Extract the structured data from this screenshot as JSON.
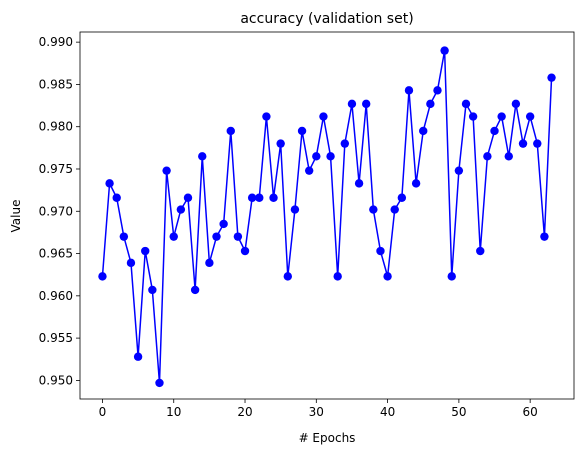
{
  "chart_data": {
    "type": "line",
    "title": "accuracy (validation set)",
    "xlabel": "# Epochs",
    "ylabel": "Value",
    "xlim": [
      -3.15,
      66.15
    ],
    "ylim": [
      0.9478,
      0.9912
    ],
    "xticks": [
      0,
      10,
      20,
      30,
      40,
      50,
      60
    ],
    "yticks": [
      0.95,
      0.955,
      0.96,
      0.965,
      0.97,
      0.975,
      0.98,
      0.985,
      0.99
    ],
    "xtick_labels": [
      "0",
      "10",
      "20",
      "30",
      "40",
      "50",
      "60"
    ],
    "ytick_labels": [
      "0.950",
      "0.955",
      "0.960",
      "0.965",
      "0.970",
      "0.975",
      "0.980",
      "0.985",
      "0.990"
    ],
    "grid": false,
    "legend": "none",
    "series": [
      {
        "color": "#0000ff",
        "marker": "circle",
        "x": [
          0,
          1,
          2,
          3,
          4,
          5,
          6,
          7,
          8,
          9,
          10,
          11,
          12,
          13,
          14,
          15,
          16,
          17,
          18,
          19,
          20,
          21,
          22,
          23,
          24,
          25,
          26,
          27,
          28,
          29,
          30,
          31,
          32,
          33,
          34,
          35,
          36,
          37,
          38,
          39,
          40,
          41,
          42,
          43,
          44,
          45,
          46,
          47,
          48,
          49,
          50,
          51,
          52,
          53,
          54,
          55,
          56,
          57,
          58,
          59,
          60,
          61,
          62,
          63
        ],
        "values": [
          0.9623,
          0.9733,
          0.9716,
          0.967,
          0.9639,
          0.9528,
          0.9653,
          0.9607,
          0.9497,
          0.9748,
          0.967,
          0.9702,
          0.9716,
          0.9607,
          0.9765,
          0.9639,
          0.967,
          0.9685,
          0.9795,
          0.967,
          0.9653,
          0.9716,
          0.9716,
          0.9812,
          0.9716,
          0.978,
          0.9623,
          0.9702,
          0.9795,
          0.9748,
          0.9765,
          0.9812,
          0.9765,
          0.9623,
          0.978,
          0.9827,
          0.9733,
          0.9827,
          0.9702,
          0.9653,
          0.9623,
          0.9702,
          0.9716,
          0.9843,
          0.9733,
          0.9795,
          0.9827,
          0.9843,
          0.989,
          0.9623,
          0.9748,
          0.9827,
          0.9812,
          0.9653,
          0.9765,
          0.9795,
          0.9812,
          0.9765,
          0.9827,
          0.978,
          0.9812,
          0.978,
          0.967,
          0.9858
        ]
      }
    ]
  }
}
